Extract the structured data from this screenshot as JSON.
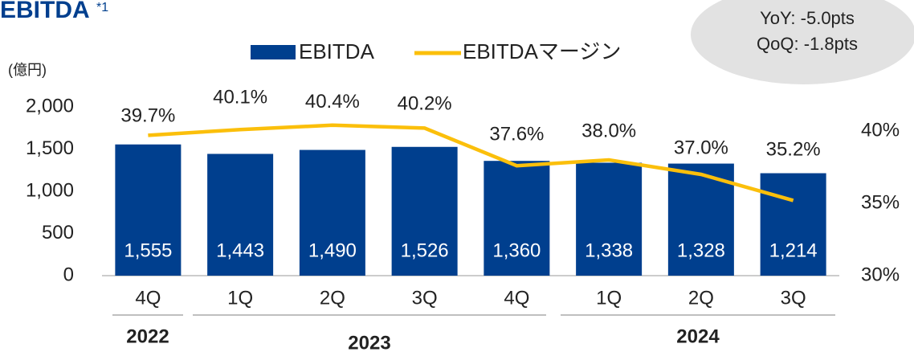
{
  "chart_data": {
    "type": "bar_line",
    "title": "EBITDA",
    "title_note": "*1",
    "unit": "(億円)",
    "badge": [
      "YoY:  -5.0pts",
      "QoQ: -1.8pts"
    ],
    "categories": [
      "4Q",
      "1Q",
      "2Q",
      "3Q",
      "4Q",
      "1Q",
      "2Q",
      "3Q"
    ],
    "years": [
      "2022",
      "2023",
      "2024"
    ],
    "series": [
      {
        "name": "EBITDA",
        "color": "#003f8e",
        "kind": "bar",
        "values": [
          1555,
          1443,
          1490,
          1526,
          1360,
          1338,
          1328,
          1214
        ],
        "value_labels": [
          "1,555",
          "1,443",
          "1,490",
          "1,526",
          "1,360",
          "1,338",
          "1,328",
          "1,214"
        ]
      },
      {
        "name": "EBITDAマージン",
        "color": "#fbbf0b",
        "kind": "line",
        "axis": "y2",
        "values": [
          39.7,
          40.1,
          40.4,
          40.2,
          37.6,
          38.0,
          37.0,
          35.2
        ],
        "value_labels": [
          "39.7%",
          "40.1%",
          "40.4%",
          "40.2%",
          "37.6%",
          "38.0%",
          "37.0%",
          "35.2%"
        ]
      }
    ],
    "ylim": [
      0,
      2000
    ],
    "yticks": [
      0,
      500,
      {
        "value": 1000,
        "label": "1,000"
      },
      {
        "value": 1500,
        "label": "1,500"
      },
      {
        "value": 2000,
        "label": "2,000"
      }
    ],
    "y2lim": [
      30,
      40
    ],
    "y2ticks": [
      {
        "value": 30,
        "label": "30%"
      },
      {
        "value": 35,
        "label": "35%"
      },
      {
        "value": 40,
        "label": "40%"
      }
    ]
  }
}
